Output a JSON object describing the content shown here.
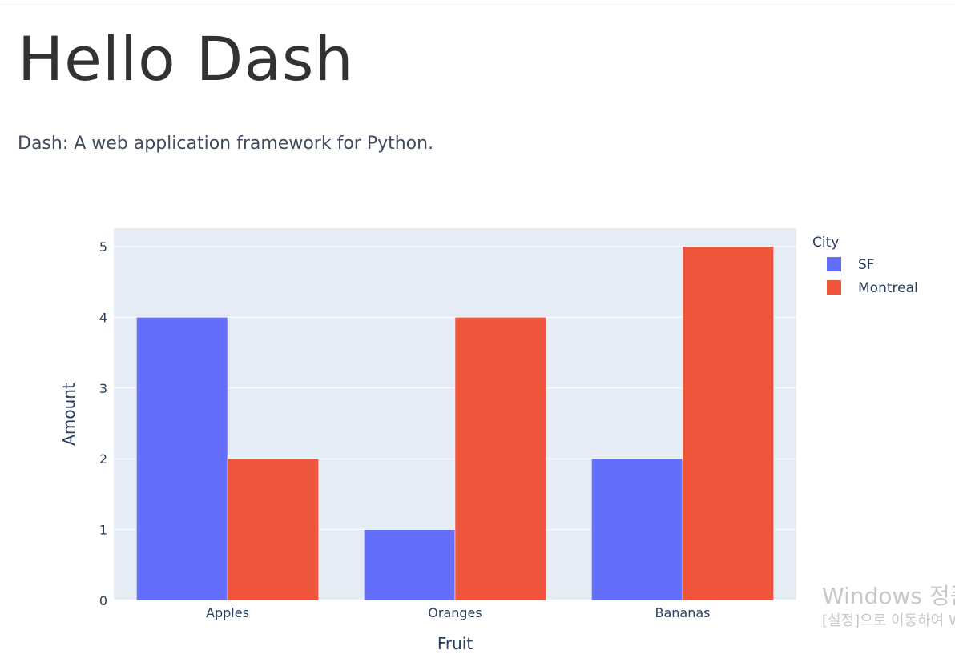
{
  "header": {
    "title": "Hello Dash",
    "subtitle": "Dash: A web application framework for Python."
  },
  "chart_data": {
    "type": "bar",
    "barmode": "group",
    "categories": [
      "Apples",
      "Oranges",
      "Bananas"
    ],
    "series": [
      {
        "name": "SF",
        "values": [
          4,
          1,
          2
        ],
        "color": "#636efa"
      },
      {
        "name": "Montreal",
        "values": [
          2,
          4,
          5
        ],
        "color": "#ef553b"
      }
    ],
    "xlabel": "Fruit",
    "ylabel": "Amount",
    "legend_title": "City",
    "legend_position": "right",
    "ylim": [
      0,
      5.26
    ],
    "yticks": [
      0,
      1,
      2,
      3,
      4,
      5
    ],
    "grid": true,
    "plot_background": "#e5ecf6"
  },
  "os_overlay": {
    "line1": "Windows 정품 인증",
    "line2": "[설정]으로 이동하여 Windows를 정품 인증합니다."
  }
}
